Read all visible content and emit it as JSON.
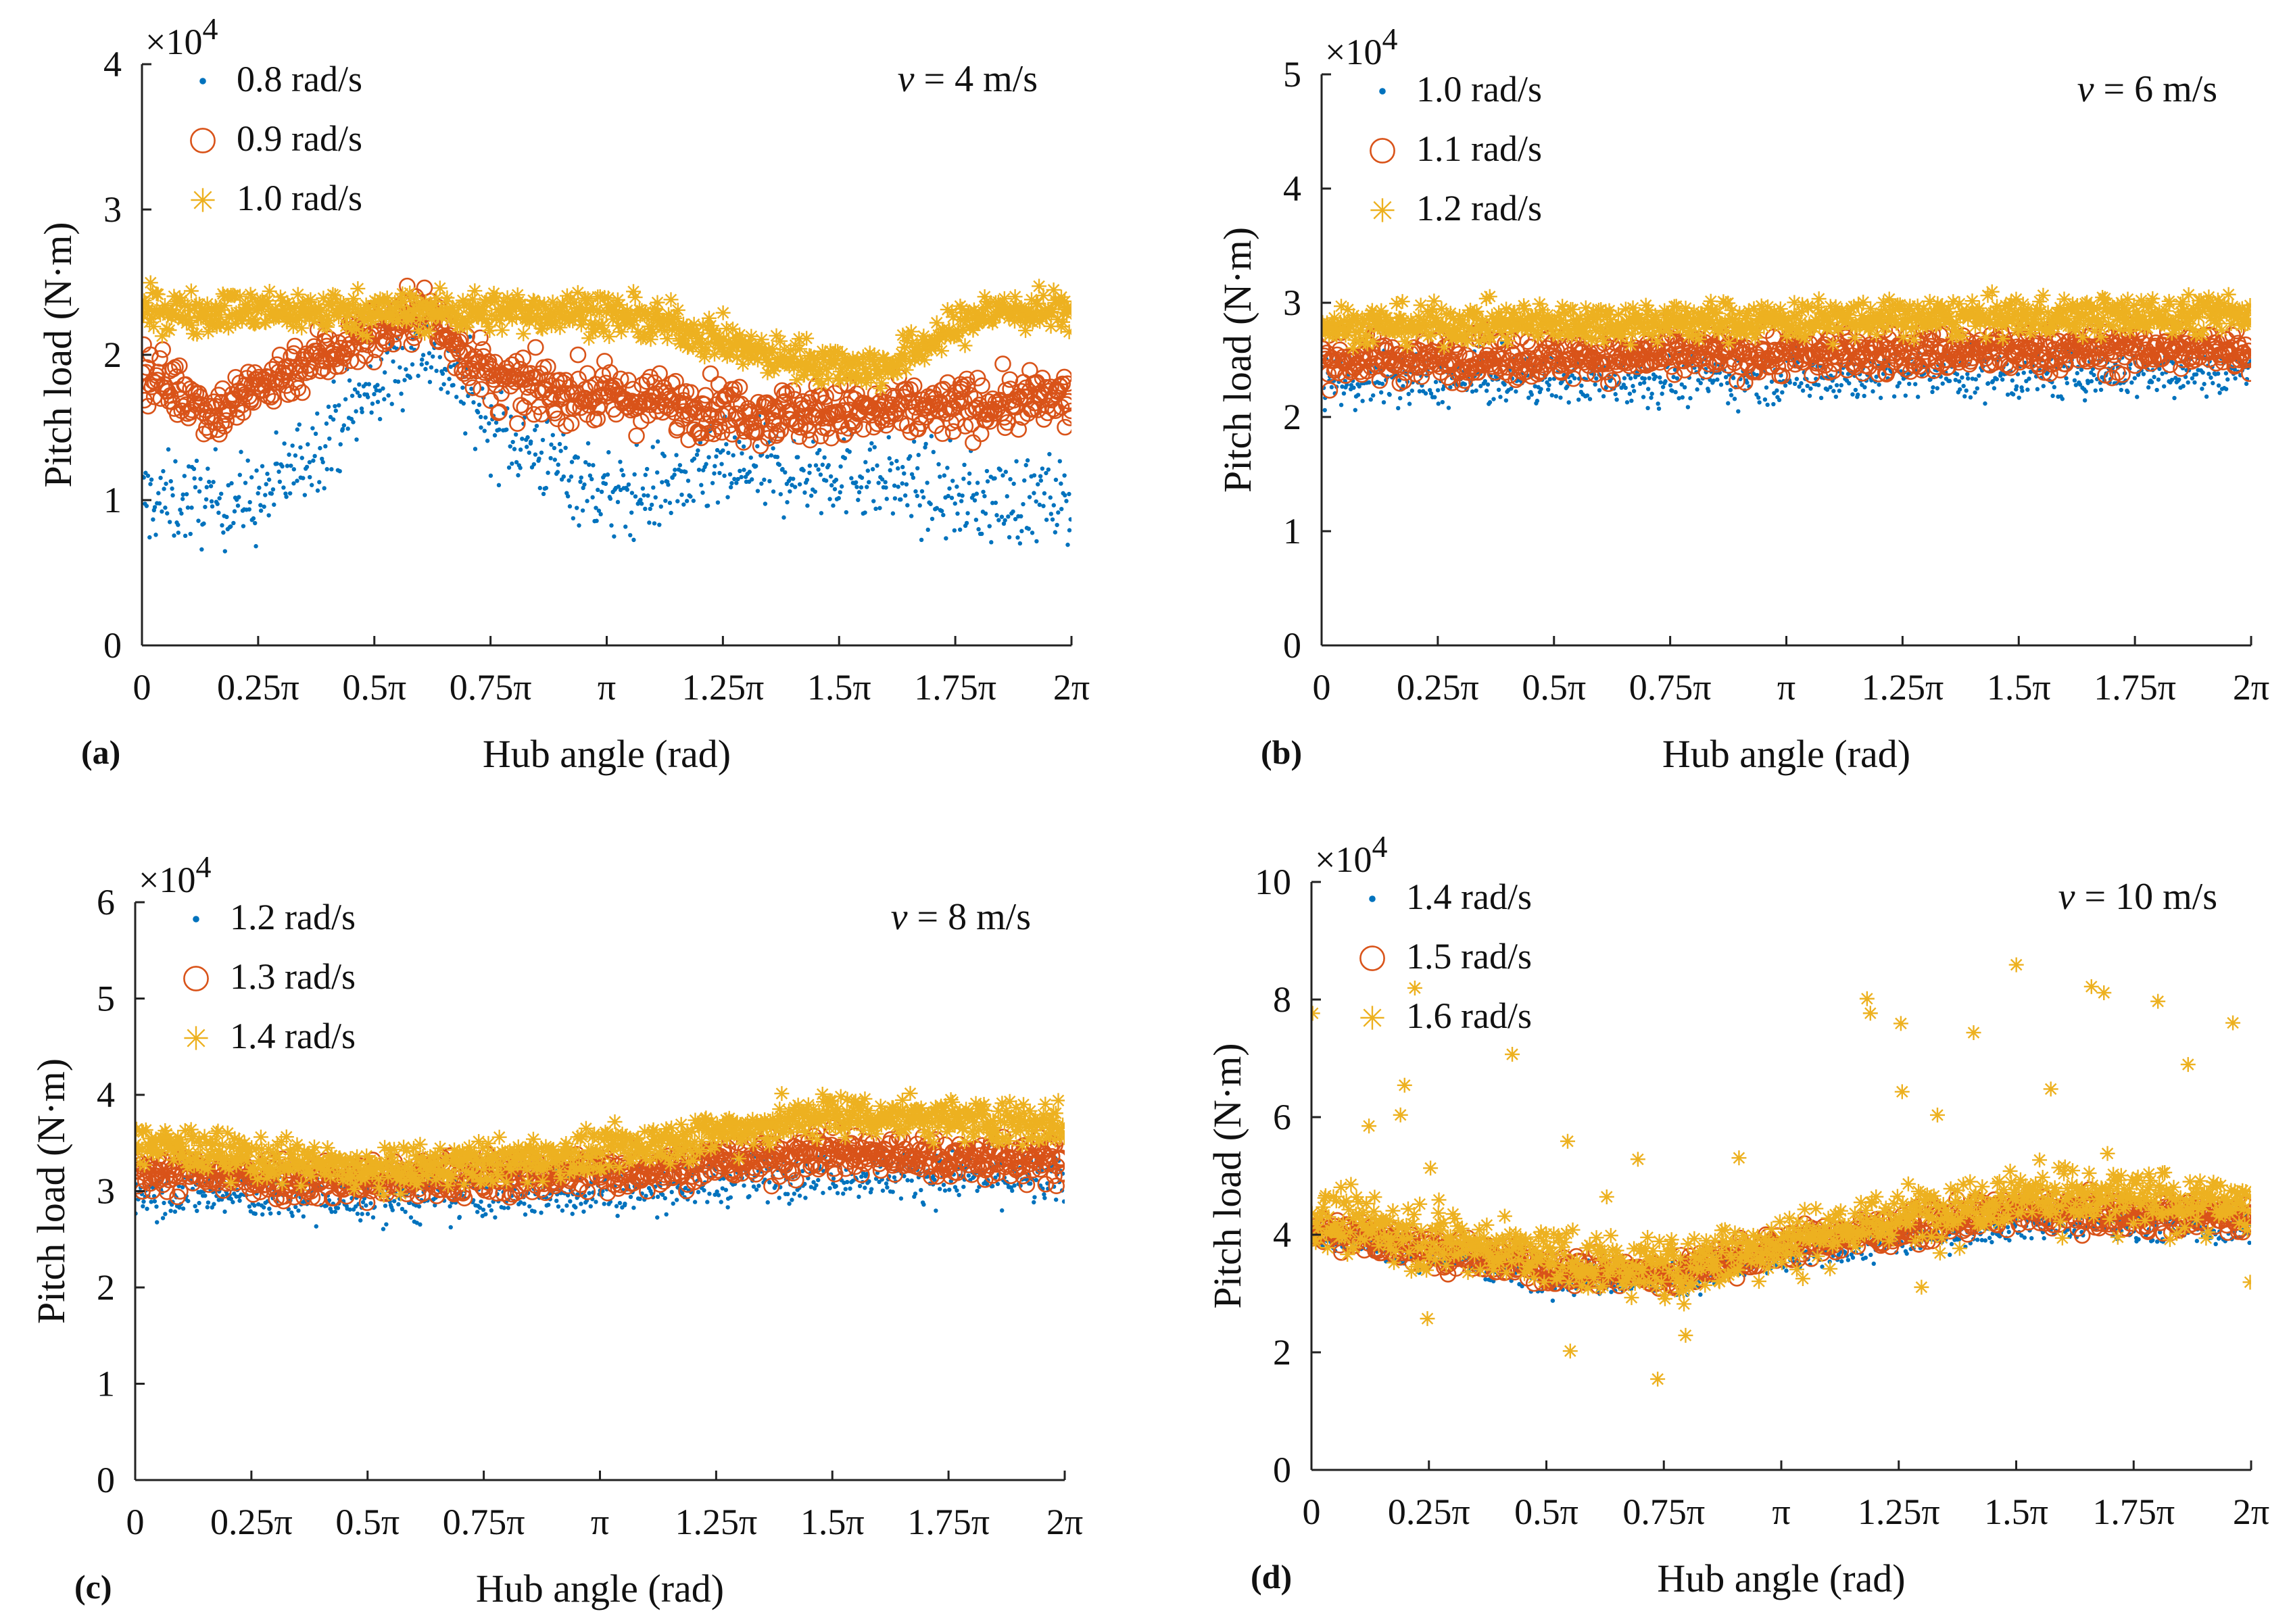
{
  "figure": {
    "x_ticks": [
      "0",
      "0.25π",
      "0.5π",
      "0.75π",
      "π",
      "1.25π",
      "1.5π",
      "1.75π",
      "2π"
    ],
    "series_colors": [
      "#0072BD",
      "#D95319",
      "#EDB120"
    ],
    "marker_styles": [
      "dot",
      "circle",
      "asterisk"
    ]
  },
  "chart_data": [
    {
      "type": "scatter",
      "panel": "(a)",
      "annotation": "v = 4 m/s",
      "annotation_var": "v",
      "annotation_rest": " = 4 m/s",
      "xlabel": "Hub angle (rad)",
      "ylabel": "Pitch load (N·m)",
      "multiplier": "×10",
      "multiplier_exp": "4",
      "xlim": [
        0,
        6.2832
      ],
      "ylim": [
        0,
        4
      ],
      "yticks": [
        "0",
        "1",
        "2",
        "3",
        "4"
      ],
      "legend_position": "top-left",
      "series": [
        {
          "name": "0.8 rad/s",
          "mean_profile": [
            [
              0,
              1.0
            ],
            [
              0.8,
              1.0
            ],
            [
              1.3,
              1.5
            ],
            [
              1.9,
              2.1
            ],
            [
              2.4,
              1.5
            ],
            [
              3.2,
              1.0
            ],
            [
              3.9,
              1.2
            ],
            [
              4.8,
              1.2
            ],
            [
              5.6,
              1.0
            ],
            [
              6.28,
              1.0
            ]
          ],
          "spread": 0.55
        },
        {
          "name": "0.9 rad/s",
          "mean_profile": [
            [
              0,
              1.9
            ],
            [
              0.5,
              1.6
            ],
            [
              1.0,
              1.9
            ],
            [
              1.9,
              2.3
            ],
            [
              2.4,
              1.8
            ],
            [
              3.2,
              1.7
            ],
            [
              4.2,
              1.6
            ],
            [
              5.0,
              1.6
            ],
            [
              6.28,
              1.7
            ]
          ],
          "spread": 0.35
        },
        {
          "name": "1.0 rad/s",
          "mean_profile": [
            [
              0,
              2.3
            ],
            [
              1.0,
              2.3
            ],
            [
              2.0,
              2.3
            ],
            [
              3.0,
              2.3
            ],
            [
              3.6,
              2.2
            ],
            [
              4.2,
              2.0
            ],
            [
              5.0,
              1.9
            ],
            [
              5.7,
              2.3
            ],
            [
              6.28,
              2.3
            ]
          ],
          "spread": 0.25
        }
      ]
    },
    {
      "type": "scatter",
      "panel": "(b)",
      "annotation": "v = 6 m/s",
      "annotation_var": "v",
      "annotation_rest": " = 6 m/s",
      "xlabel": "Hub angle (rad)",
      "ylabel": "Pitch load (N·m)",
      "multiplier": "×10",
      "multiplier_exp": "4",
      "xlim": [
        0,
        6.2832
      ],
      "ylim": [
        0,
        5
      ],
      "yticks": [
        "0",
        "1",
        "2",
        "3",
        "4",
        "5"
      ],
      "legend_position": "top-left",
      "series": [
        {
          "name": "1.0 rad/s",
          "mean_profile": [
            [
              0,
              2.3
            ],
            [
              3.14,
              2.35
            ],
            [
              6.28,
              2.4
            ]
          ],
          "spread": 0.4
        },
        {
          "name": "1.1 rad/s",
          "mean_profile": [
            [
              0,
              2.5
            ],
            [
              3.14,
              2.55
            ],
            [
              6.28,
              2.6
            ]
          ],
          "spread": 0.35
        },
        {
          "name": "1.2 rad/s",
          "mean_profile": [
            [
              0,
              2.8
            ],
            [
              3.14,
              2.85
            ],
            [
              6.28,
              2.9
            ]
          ],
          "spread": 0.3
        }
      ]
    },
    {
      "type": "scatter",
      "panel": "(c)",
      "annotation": "v = 8 m/s",
      "annotation_var": "v",
      "annotation_rest": " = 8 m/s",
      "xlabel": "Hub angle (rad)",
      "ylabel": "Pitch load (N·m)",
      "multiplier": "×10",
      "multiplier_exp": "4",
      "xlim": [
        0,
        6.2832
      ],
      "ylim": [
        0,
        6
      ],
      "yticks": [
        "0",
        "1",
        "2",
        "3",
        "4",
        "5",
        "6"
      ],
      "legend_position": "top-left",
      "series": [
        {
          "name": "1.2 rad/s",
          "mean_profile": [
            [
              0,
              3.0
            ],
            [
              1.6,
              2.9
            ],
            [
              3.14,
              3.0
            ],
            [
              4.7,
              3.2
            ],
            [
              6.28,
              3.1
            ]
          ],
          "spread": 0.45
        },
        {
          "name": "1.3 rad/s",
          "mean_profile": [
            [
              0,
              3.2
            ],
            [
              1.6,
              3.1
            ],
            [
              3.14,
              3.2
            ],
            [
              4.7,
              3.4
            ],
            [
              6.28,
              3.3
            ]
          ],
          "spread": 0.4
        },
        {
          "name": "1.4 rad/s",
          "mean_profile": [
            [
              0,
              3.5
            ],
            [
              1.6,
              3.2
            ],
            [
              3.14,
              3.4
            ],
            [
              4.7,
              3.8
            ],
            [
              6.28,
              3.7
            ]
          ],
          "spread": 0.4
        }
      ]
    },
    {
      "type": "scatter",
      "panel": "(d)",
      "annotation": "v = 10 m/s",
      "annotation_var": "v",
      "annotation_rest": " = 10 m/s",
      "xlabel": "Hub angle (rad)",
      "ylabel": "Pitch load (N·m)",
      "multiplier": "×10",
      "multiplier_exp": "4",
      "xlim": [
        0,
        6.2832
      ],
      "ylim": [
        0,
        10
      ],
      "yticks": [
        "0",
        "2",
        "4",
        "6",
        "8",
        "10"
      ],
      "legend_position": "top-left",
      "series": [
        {
          "name": "1.4 rad/s",
          "mean_profile": [
            [
              0,
              4.0
            ],
            [
              1.6,
              3.3
            ],
            [
              2.4,
              3.2
            ],
            [
              3.14,
              3.6
            ],
            [
              4.7,
              4.2
            ],
            [
              6.28,
              4.1
            ]
          ],
          "spread": 0.5
        },
        {
          "name": "1.5 rad/s",
          "mean_profile": [
            [
              0,
              4.1
            ],
            [
              1.6,
              3.4
            ],
            [
              2.4,
              3.3
            ],
            [
              3.14,
              3.8
            ],
            [
              4.7,
              4.4
            ],
            [
              6.28,
              4.3
            ]
          ],
          "spread": 0.5
        },
        {
          "name": "1.6 rad/s",
          "mean_profile": [
            [
              0,
              4.3
            ],
            [
              1.6,
              3.6
            ],
            [
              2.4,
              3.4
            ],
            [
              3.14,
              3.9
            ],
            [
              4.7,
              4.7
            ],
            [
              6.28,
              4.5
            ]
          ],
          "spread": 0.9
        }
      ]
    }
  ]
}
